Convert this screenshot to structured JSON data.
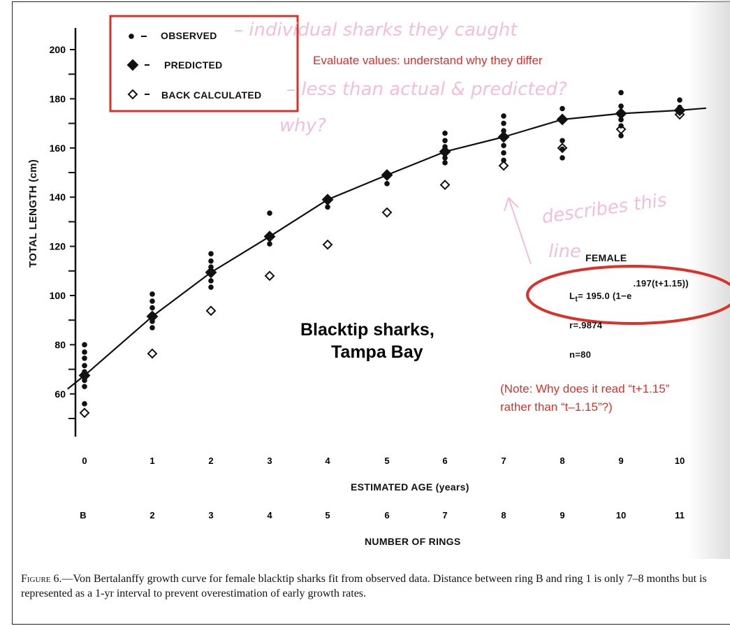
{
  "chart_data": {
    "type": "scatter",
    "ylabel": "TOTAL LENGTH (cm)",
    "xlabel": "ESTIMATED AGE (years)",
    "x2label": "NUMBER OF RINGS",
    "ylim": [
      50,
      210
    ],
    "yticks": [
      60,
      80,
      100,
      120,
      140,
      160,
      180,
      200
    ],
    "xticks": [
      "0",
      "1",
      "2",
      "3",
      "4",
      "5",
      "6",
      "7",
      "8",
      "9",
      "10"
    ],
    "x2ticks": [
      "B",
      "2",
      "3",
      "4",
      "5",
      "6",
      "7",
      "8",
      "9",
      "10",
      "11"
    ],
    "legend": {
      "position": "top-left",
      "entries": [
        "OBSERVED",
        "PREDICTED",
        "BACK CALCULATED"
      ]
    },
    "series": [
      {
        "name": "OBSERVED",
        "marker": "dot",
        "points": [
          [
            0,
            80
          ],
          [
            0,
            77
          ],
          [
            0,
            74.5
          ],
          [
            0,
            71.5
          ],
          [
            0,
            69
          ],
          [
            0,
            65.5
          ],
          [
            0,
            63
          ],
          [
            0,
            56
          ],
          [
            1,
            100.6
          ],
          [
            1,
            97.7
          ],
          [
            1,
            95
          ],
          [
            1,
            92.3
          ],
          [
            1,
            89.5
          ],
          [
            1,
            86.9
          ],
          [
            2,
            117
          ],
          [
            2,
            114
          ],
          [
            2,
            111.6
          ],
          [
            2,
            109
          ],
          [
            2,
            106
          ],
          [
            2,
            103.4
          ],
          [
            3,
            133.5
          ],
          [
            3,
            124.5
          ],
          [
            3,
            121
          ],
          [
            4,
            139.5
          ],
          [
            4,
            136
          ],
          [
            5,
            148.5
          ],
          [
            5,
            145.5
          ],
          [
            6,
            166
          ],
          [
            6,
            163
          ],
          [
            6,
            160.5
          ],
          [
            6,
            156
          ],
          [
            6,
            154
          ],
          [
            7,
            173
          ],
          [
            7,
            170
          ],
          [
            7,
            167
          ],
          [
            7,
            164
          ],
          [
            7,
            161
          ],
          [
            7,
            158
          ],
          [
            7,
            155
          ],
          [
            8,
            176
          ],
          [
            8,
            171
          ],
          [
            8,
            163
          ],
          [
            8,
            159.5
          ],
          [
            8,
            156
          ],
          [
            9,
            182.5
          ],
          [
            9,
            177
          ],
          [
            9,
            174.5
          ],
          [
            9,
            171.5
          ],
          [
            9,
            169
          ],
          [
            9,
            165
          ],
          [
            10,
            179.5
          ],
          [
            10,
            176.5
          ]
        ]
      },
      {
        "name": "PREDICTED",
        "marker": "filled-diamond",
        "points": [
          [
            0,
            67.5
          ],
          [
            1,
            91.5
          ],
          [
            2,
            109.4
          ],
          [
            3,
            124
          ],
          [
            4,
            139
          ],
          [
            5,
            149
          ],
          [
            6,
            158.5
          ],
          [
            7,
            164.5
          ],
          [
            8,
            171.6
          ],
          [
            9,
            174
          ],
          [
            10,
            175.3
          ]
        ]
      },
      {
        "name": "BACK CALCULATED",
        "marker": "open-diamond",
        "points": [
          [
            0,
            52.3
          ],
          [
            1,
            76.4
          ],
          [
            2,
            93.8
          ],
          [
            3,
            108
          ],
          [
            4,
            120.7
          ],
          [
            5,
            133.8
          ],
          [
            6,
            145
          ],
          [
            7,
            152.8
          ],
          [
            8,
            160
          ],
          [
            9,
            167.6
          ],
          [
            10,
            173.6
          ]
        ]
      }
    ],
    "fit_line": {
      "label": "FEMALE",
      "equation_main": "L",
      "equation_sub": "t",
      "equation_rest": "= 195.0 (1−e",
      "equation_sup": ".197(t+1.15))",
      "r": "r=.9874",
      "n": "n=80"
    },
    "colors": {
      "ink": "#111111",
      "annotation_red": "#d8322b",
      "handwriting_pink": "#f0bfdc"
    }
  },
  "annotations": {
    "title_overlay_1": "Blacktip sharks,",
    "title_overlay_2": "Tampa Bay",
    "evaluate": "Evaluate values: understand why they differ",
    "note_1": "(Note: Why does it read “t+1.15”",
    "note_2": "rather than “t–1.15”?)",
    "hand_1": "– individual sharks they caught",
    "hand_2": "– less than actual & predicted?",
    "hand_3": "why?",
    "hand_4": "describes this",
    "hand_5": "line"
  },
  "caption": {
    "lead": "Figure 6.",
    "text": "—Von Bertalanffy growth curve for female blacktip sharks fit from observed data. Distance between ring B and ring 1 is only 7–8 months but is represented as a 1-yr interval to prevent overestimation of early growth rates."
  }
}
